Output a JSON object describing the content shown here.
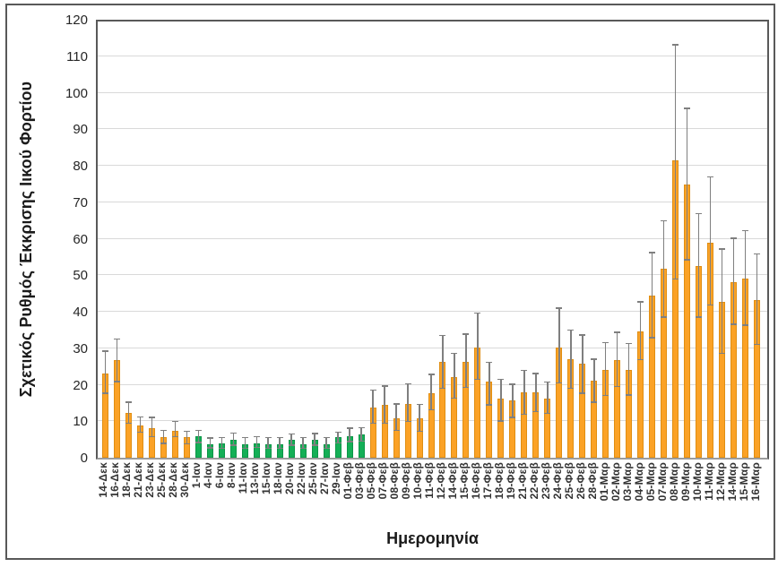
{
  "chart_data": {
    "type": "bar",
    "title": "",
    "xlabel": "Ημερομηνία",
    "ylabel": "Σχετικός Ρυθμός Έκκρισης Ιικού Φορτίου",
    "ylim": [
      0,
      120
    ],
    "yticks": [
      0,
      10,
      20,
      30,
      40,
      50,
      60,
      70,
      80,
      90,
      100,
      110,
      120
    ],
    "grid": true,
    "legend": "none",
    "error_bars": true,
    "colors": {
      "orange": "#FBA226",
      "orange_border": "#E08E12",
      "green": "#14AF56",
      "green_border": "#0B9647",
      "error": "#7F7F7F",
      "grid": "#D9D9D9",
      "axis": "#595959"
    },
    "bars": [
      {
        "label": "14-Δεκ",
        "value": 23.0,
        "lo": 17.5,
        "hi": 29.0,
        "color": "orange"
      },
      {
        "label": "16-Δεκ",
        "value": 26.7,
        "lo": 20.7,
        "hi": 32.3,
        "color": "orange"
      },
      {
        "label": "18-Δεκ",
        "value": 12.3,
        "lo": 9.3,
        "hi": 15.0,
        "color": "orange"
      },
      {
        "label": "21-Δεκ",
        "value": 8.9,
        "lo": 6.8,
        "hi": 11.0,
        "color": "orange"
      },
      {
        "label": "23-Δεκ",
        "value": 8.2,
        "lo": 5.6,
        "hi": 10.9,
        "color": "orange"
      },
      {
        "label": "25-Δεκ",
        "value": 5.6,
        "lo": 3.8,
        "hi": 7.3,
        "color": "orange"
      },
      {
        "label": "28-Δεκ",
        "value": 7.4,
        "lo": 5.6,
        "hi": 9.7,
        "color": "orange"
      },
      {
        "label": "30-Δεκ",
        "value": 5.6,
        "lo": 3.6,
        "hi": 7.1,
        "color": "orange"
      },
      {
        "label": "1-Ιαν",
        "value": 5.8,
        "lo": 4.0,
        "hi": 7.3,
        "color": "green"
      },
      {
        "label": "4-Ιαν",
        "value": 3.8,
        "lo": 2.5,
        "hi": 5.2,
        "color": "green"
      },
      {
        "label": "6-Ιαν",
        "value": 4.0,
        "lo": 2.4,
        "hi": 5.4,
        "color": "green"
      },
      {
        "label": "8-Ιαν",
        "value": 5.0,
        "lo": 3.3,
        "hi": 6.6,
        "color": "green"
      },
      {
        "label": "11-Ιαν",
        "value": 3.8,
        "lo": 2.4,
        "hi": 5.4,
        "color": "green"
      },
      {
        "label": "13-Ιαν",
        "value": 4.0,
        "lo": 2.7,
        "hi": 5.6,
        "color": "green"
      },
      {
        "label": "15-Ιαν",
        "value": 3.8,
        "lo": 2.4,
        "hi": 5.4,
        "color": "green"
      },
      {
        "label": "18-Ιαν",
        "value": 3.7,
        "lo": 2.4,
        "hi": 5.3,
        "color": "green"
      },
      {
        "label": "20-Ιαν",
        "value": 5.0,
        "lo": 3.2,
        "hi": 6.3,
        "color": "green"
      },
      {
        "label": "22-Ιαν",
        "value": 3.8,
        "lo": 2.4,
        "hi": 5.4,
        "color": "green"
      },
      {
        "label": "25-Ιαν",
        "value": 4.8,
        "lo": 3.2,
        "hi": 6.4,
        "color": "green"
      },
      {
        "label": "27-Ιαν",
        "value": 3.8,
        "lo": 2.4,
        "hi": 5.4,
        "color": "green"
      },
      {
        "label": "29-Ιαν",
        "value": 5.6,
        "lo": 3.9,
        "hi": 6.8,
        "color": "green"
      },
      {
        "label": "01-Φεβ",
        "value": 6.0,
        "lo": 4.2,
        "hi": 7.9,
        "color": "green"
      },
      {
        "label": "03-Φεβ",
        "value": 6.3,
        "lo": 4.4,
        "hi": 8.1,
        "color": "green"
      },
      {
        "label": "05-Φεβ",
        "value": 13.8,
        "lo": 9.3,
        "hi": 18.3,
        "color": "orange"
      },
      {
        "label": "07-Φεβ",
        "value": 14.4,
        "lo": 9.3,
        "hi": 19.5,
        "color": "orange"
      },
      {
        "label": "08-Φεβ",
        "value": 10.7,
        "lo": 7.3,
        "hi": 14.6,
        "color": "orange"
      },
      {
        "label": "09-Φεβ",
        "value": 14.7,
        "lo": 9.7,
        "hi": 20.1,
        "color": "orange"
      },
      {
        "label": "10-Φεβ",
        "value": 10.7,
        "lo": 7.1,
        "hi": 14.4,
        "color": "orange"
      },
      {
        "label": "11-Φεβ",
        "value": 17.7,
        "lo": 13.0,
        "hi": 22.6,
        "color": "orange"
      },
      {
        "label": "12-Φεβ",
        "value": 26.2,
        "lo": 18.8,
        "hi": 33.3,
        "color": "orange"
      },
      {
        "label": "14-Φεβ",
        "value": 22.1,
        "lo": 16.1,
        "hi": 28.4,
        "color": "orange"
      },
      {
        "label": "15-Φεβ",
        "value": 26.2,
        "lo": 19.1,
        "hi": 33.7,
        "color": "orange"
      },
      {
        "label": "16-Φεβ",
        "value": 30.2,
        "lo": 21.3,
        "hi": 39.4,
        "color": "orange"
      },
      {
        "label": "17-Φεβ",
        "value": 20.8,
        "lo": 14.3,
        "hi": 26.0,
        "color": "orange"
      },
      {
        "label": "18-Φεβ",
        "value": 16.1,
        "lo": 9.9,
        "hi": 21.3,
        "color": "orange"
      },
      {
        "label": "19-Φεβ",
        "value": 15.8,
        "lo": 10.9,
        "hi": 19.9,
        "color": "orange"
      },
      {
        "label": "21-Φεβ",
        "value": 17.8,
        "lo": 11.7,
        "hi": 23.7,
        "color": "orange"
      },
      {
        "label": "22-Φεβ",
        "value": 17.8,
        "lo": 12.5,
        "hi": 22.9,
        "color": "orange"
      },
      {
        "label": "23-Φεβ",
        "value": 16.2,
        "lo": 12.0,
        "hi": 20.5,
        "color": "orange"
      },
      {
        "label": "24-Φεβ",
        "value": 30.2,
        "lo": 20.3,
        "hi": 40.8,
        "color": "orange"
      },
      {
        "label": "25-Φεβ",
        "value": 27.0,
        "lo": 18.8,
        "hi": 34.8,
        "color": "orange"
      },
      {
        "label": "26-Φεβ",
        "value": 25.7,
        "lo": 17.5,
        "hi": 33.5,
        "color": "orange"
      },
      {
        "label": "28-Φεβ",
        "value": 21.1,
        "lo": 15.0,
        "hi": 26.8,
        "color": "orange"
      },
      {
        "label": "01-Μαρ",
        "value": 24.0,
        "lo": 16.9,
        "hi": 31.3,
        "color": "orange"
      },
      {
        "label": "02-Μαρ",
        "value": 26.7,
        "lo": 19.3,
        "hi": 34.2,
        "color": "orange"
      },
      {
        "label": "03-Μαρ",
        "value": 24.0,
        "lo": 17.0,
        "hi": 31.1,
        "color": "orange"
      },
      {
        "label": "04-Μαρ",
        "value": 34.6,
        "lo": 26.7,
        "hi": 42.5,
        "color": "orange"
      },
      {
        "label": "05-Μαρ",
        "value": 44.3,
        "lo": 32.7,
        "hi": 56.0,
        "color": "orange"
      },
      {
        "label": "07-Μαρ",
        "value": 51.7,
        "lo": 38.4,
        "hi": 64.7,
        "color": "orange"
      },
      {
        "label": "08-Μαρ",
        "value": 81.4,
        "lo": 48.8,
        "hi": 113.0,
        "color": "orange"
      },
      {
        "label": "09-Μαρ",
        "value": 74.9,
        "lo": 54.1,
        "hi": 95.5,
        "color": "orange"
      },
      {
        "label": "10-Μαρ",
        "value": 52.5,
        "lo": 38.4,
        "hi": 66.7,
        "color": "orange"
      },
      {
        "label": "11-Μαρ",
        "value": 58.8,
        "lo": 41.6,
        "hi": 76.8,
        "color": "orange"
      },
      {
        "label": "12-Μαρ",
        "value": 42.7,
        "lo": 28.4,
        "hi": 57.0,
        "color": "orange"
      },
      {
        "label": "14-Μαρ",
        "value": 48.2,
        "lo": 36.4,
        "hi": 60.0,
        "color": "orange"
      },
      {
        "label": "15-Μαρ",
        "value": 49.2,
        "lo": 36.2,
        "hi": 62.0,
        "color": "orange"
      },
      {
        "label": "16-Μαρ",
        "value": 43.1,
        "lo": 30.9,
        "hi": 55.7,
        "color": "orange"
      }
    ]
  }
}
